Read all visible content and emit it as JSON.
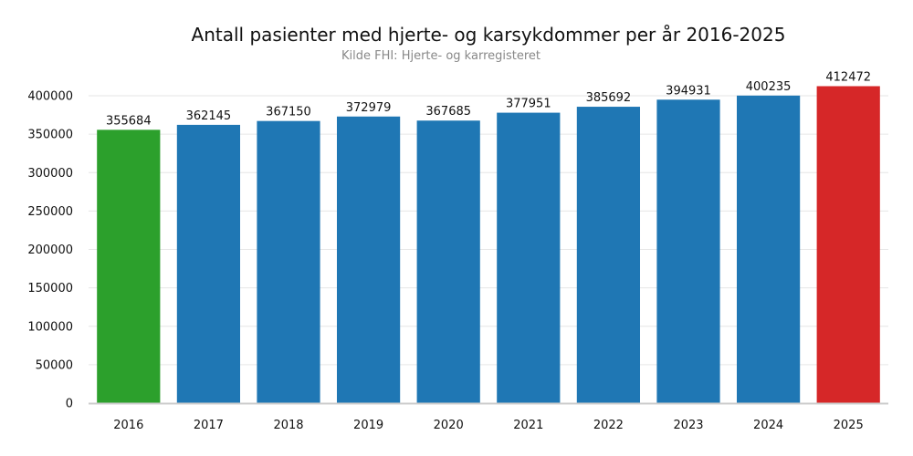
{
  "chart_data": {
    "type": "bar",
    "title": "Antall pasienter med hjerte- og karsykdommer per år 2016-2025",
    "subtitle": "Kilde FHI: Hjerte- og karregisteret",
    "xlabel": "",
    "ylabel": "",
    "categories": [
      "2016",
      "2017",
      "2018",
      "2019",
      "2020",
      "2021",
      "2022",
      "2023",
      "2024",
      "2025"
    ],
    "values": [
      355684,
      362145,
      367150,
      372979,
      367685,
      377951,
      385692,
      394931,
      400235,
      412472
    ],
    "data_labels": [
      "355684",
      "362145",
      "367150",
      "372979",
      "367685",
      "377951",
      "385692",
      "394931",
      "400235",
      "412472"
    ],
    "bar_colors": [
      "#2ca02c",
      "#1f77b4",
      "#1f77b4",
      "#1f77b4",
      "#1f77b4",
      "#1f77b4",
      "#1f77b4",
      "#1f77b4",
      "#1f77b4",
      "#d62728"
    ],
    "ylim": [
      0,
      400000
    ],
    "yticks": [
      0,
      50000,
      100000,
      150000,
      200000,
      250000,
      300000,
      350000,
      400000
    ],
    "ytick_labels": [
      "0",
      "50000",
      "100000",
      "150000",
      "200000",
      "250000",
      "300000",
      "350000",
      "400000"
    ],
    "grid": true,
    "legend": "none"
  }
}
